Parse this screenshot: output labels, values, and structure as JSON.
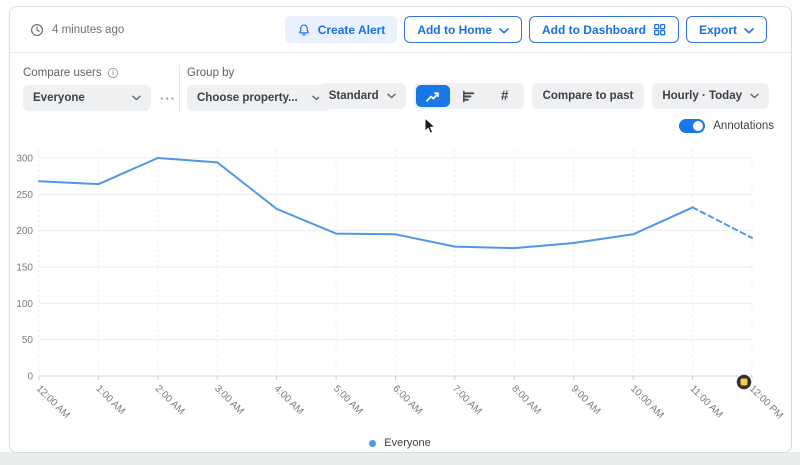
{
  "topbar": {
    "last_updated": "4 minutes ago",
    "create_alert_label": "Create Alert",
    "add_to_home_label": "Add to Home",
    "add_to_dashboard_label": "Add to Dashboard",
    "export_label": "Export"
  },
  "filters": {
    "compare_users_label": "Compare users",
    "compare_users_value": "Everyone",
    "more_label": "···",
    "group_by_label": "Group by",
    "group_by_value": "Choose property...",
    "chart_style_value": "Standard",
    "compare_to_past_label": "Compare to past",
    "interval_value": "Hourly · Today",
    "annotations_label": "Annotations"
  },
  "colors": {
    "accent_blue": "#1b6fe0",
    "active_button_blue": "#1878e8",
    "line_blue": "#4f97e8",
    "annotation_yellow": "#f5d03c",
    "control_gray": "#eef0f2"
  },
  "chart_data": {
    "type": "line",
    "title": "",
    "xlabel": "",
    "ylabel": "",
    "grid": true,
    "legend_position": "bottom",
    "x_labels": [
      "12:00 AM",
      "1:00 AM",
      "2:00 AM",
      "3:00 AM",
      "4:00 AM",
      "5:00 AM",
      "6:00 AM",
      "7:00 AM",
      "8:00 AM",
      "9:00 AM",
      "10:00 AM",
      "11:00 AM",
      "12:00 PM"
    ],
    "ylim": [
      0,
      300
    ],
    "yticks": [
      0,
      50,
      100,
      150,
      200,
      250,
      300
    ],
    "series": [
      {
        "name": "Everyone",
        "color": "#4f97e8",
        "values": [
          268,
          264,
          300,
          294,
          230,
          196,
          195,
          178,
          176,
          183,
          195,
          232,
          190
        ],
        "dashed_from_index": 11
      }
    ],
    "annotation": {
      "x_label": "12:00 PM",
      "color": "#f5d03c"
    }
  }
}
